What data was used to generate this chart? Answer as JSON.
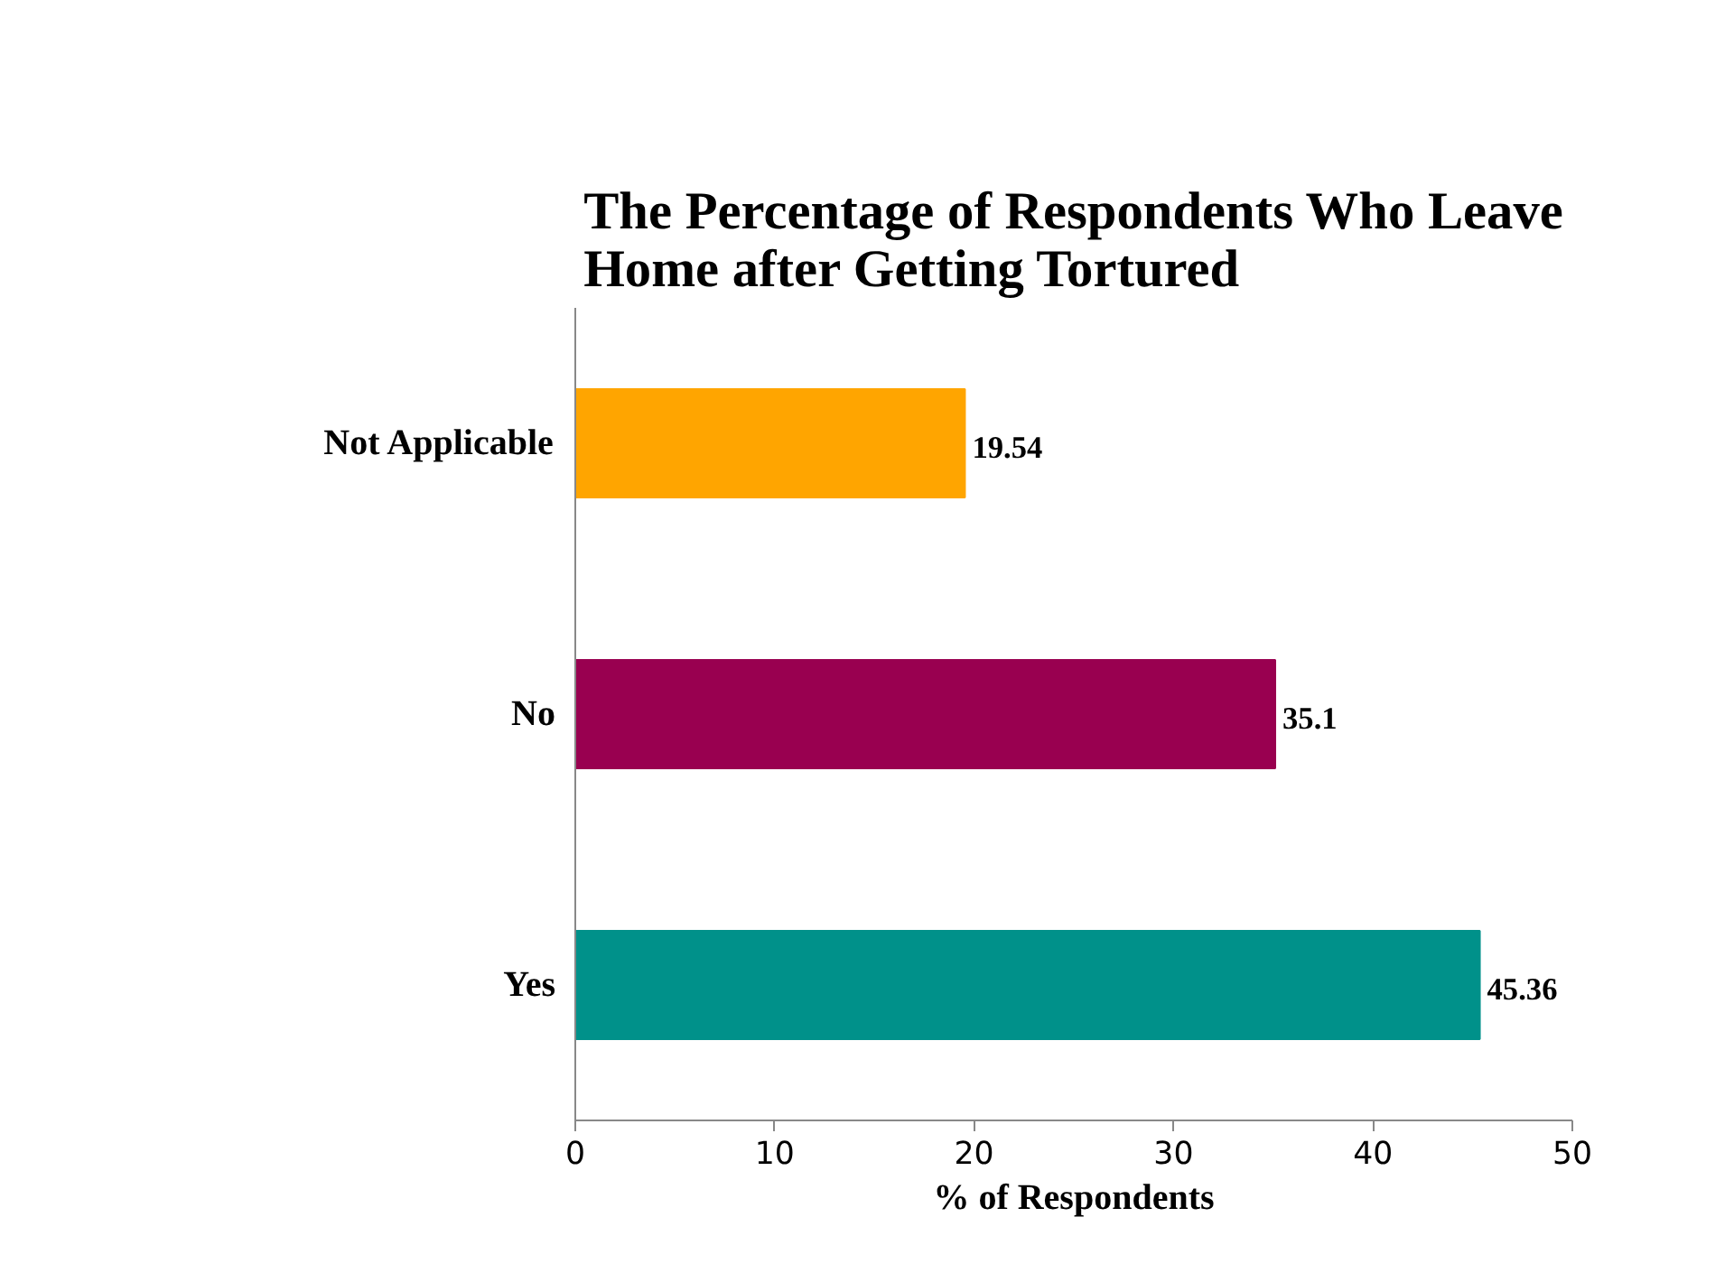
{
  "chart_data": {
    "type": "bar",
    "orientation": "horizontal",
    "title": "The Percentage of Respondents Who Leave Home after Getting Tortured",
    "xlabel": "% of Respondents",
    "categories": [
      "Not Applicable",
      "No",
      "Yes"
    ],
    "values": [
      19.54,
      35.1,
      45.36
    ],
    "colors": [
      "#ffa500",
      "#990050",
      "#00918a"
    ],
    "xlim": [
      0,
      50
    ],
    "xticks": [
      0,
      10,
      20,
      30,
      40,
      50
    ],
    "data_labels": true,
    "grid": false
  }
}
